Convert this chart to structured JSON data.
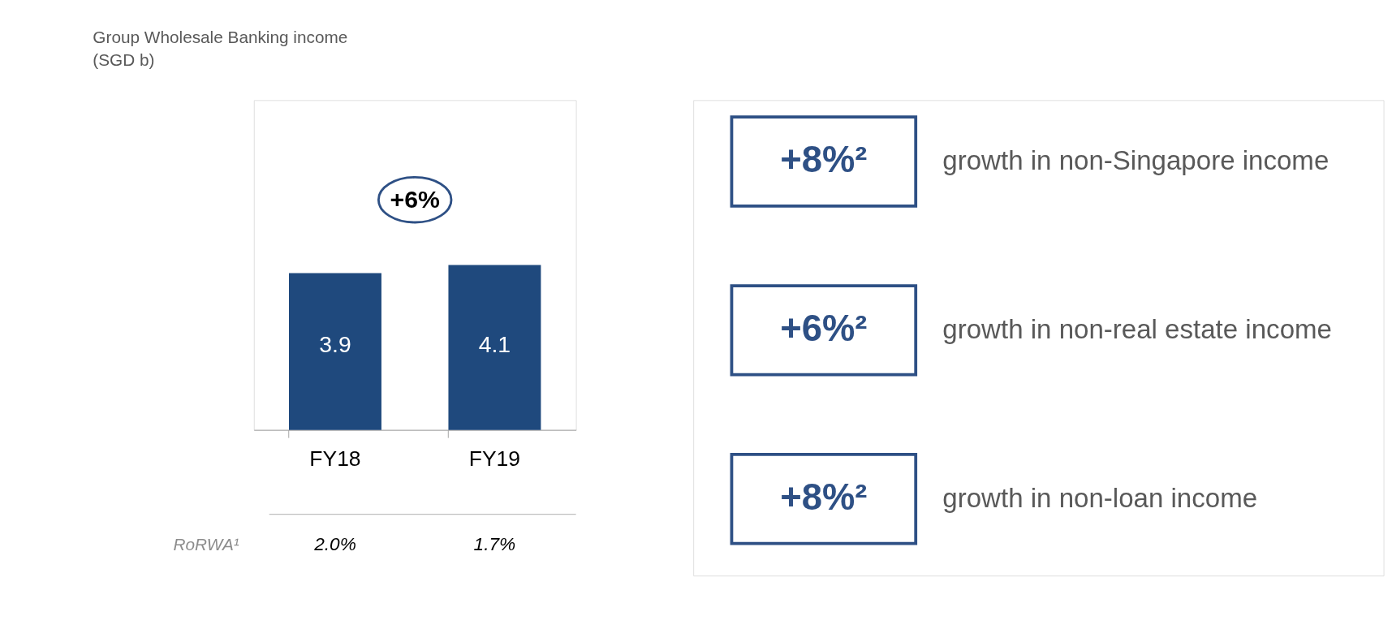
{
  "chart_data": [
    {
      "type": "bar",
      "title": "Group Wholesale Banking income (SGD b)",
      "categories": [
        "FY18",
        "FY19"
      ],
      "values": [
        3.9,
        4.1
      ],
      "color": "#1f497d",
      "data_labels": true,
      "annotations": [
        "+6%",
        "RoRWA¹",
        "2.0%",
        "1.7%"
      ]
    },
    {
      "type": "other",
      "annotations": [
        "+8%²",
        "growth in non-Singapore income",
        "+6%²",
        "growth in non-real estate income",
        "+8%²",
        "growth in non-loan income"
      ]
    }
  ]
}
